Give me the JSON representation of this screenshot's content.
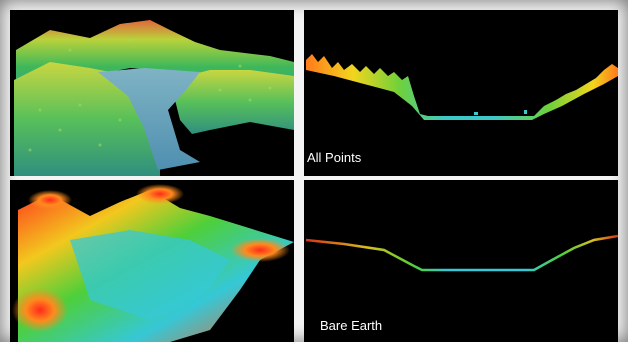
{
  "panels": {
    "top_left": {
      "content": "3D point cloud with vegetation and river channel",
      "colormap": "elevation"
    },
    "top_right": {
      "label": "All Points"
    },
    "bottom_left": {
      "content": "3D bare earth terrain surface",
      "colormap": "elevation"
    },
    "bottom_right": {
      "label": "Bare Earth"
    }
  },
  "colors": {
    "background": "#000000",
    "low": "#35c8d6",
    "mid": "#4ecf3a",
    "high": "#ff3b1e",
    "frame": "#f4f4f4"
  }
}
